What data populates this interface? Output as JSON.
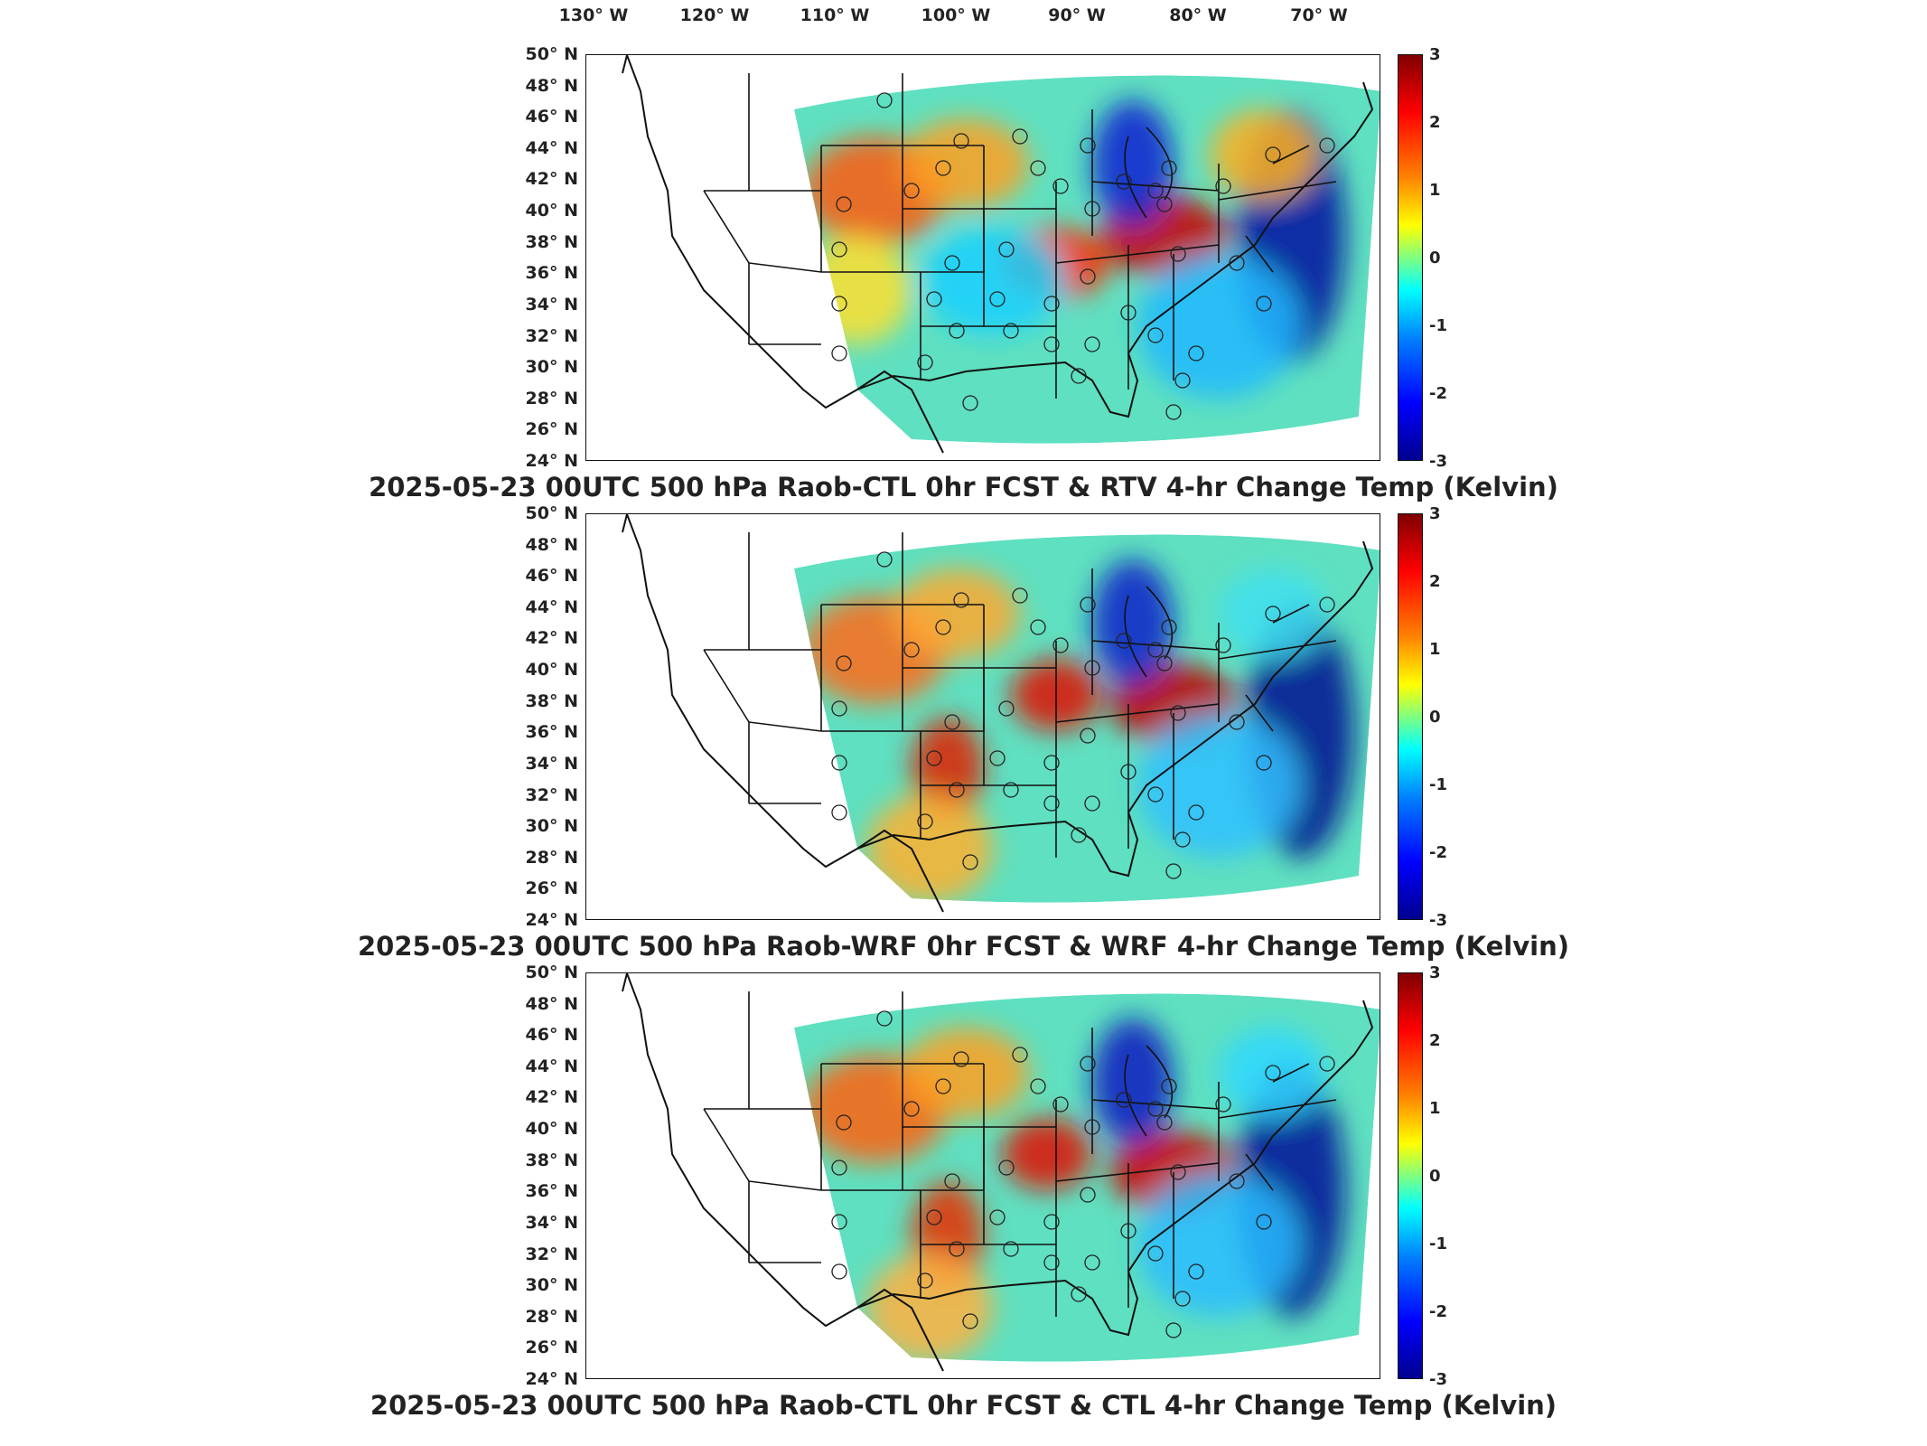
{
  "lon_labels": [
    "130° W",
    "120° W",
    "110° W",
    "100° W",
    "90° W",
    "80° W",
    "70° W"
  ],
  "lat_labels": [
    "50° N",
    "48° N",
    "46° N",
    "44° N",
    "42° N",
    "40° N",
    "38° N",
    "36° N",
    "34° N",
    "32° N",
    "30° N",
    "28° N",
    "26° N",
    "24° N"
  ],
  "colorbar": {
    "ticks": [
      "3",
      "2",
      "1",
      "0",
      "-1",
      "-2",
      "-3"
    ],
    "units": "Kelvin",
    "range": [
      -3,
      3
    ],
    "colormap": "jet"
  },
  "panels": [
    {
      "title": "2025-05-23 00UTC 500 hPa Raob-CTL 0hr FCST & RTV 4-hr Change Temp (Kelvin)"
    },
    {
      "title": "2025-05-23 00UTC 500 hPa Raob-WRF 0hr FCST & WRF 4-hr Change Temp (Kelvin)"
    },
    {
      "title": "2025-05-23 00UTC 500 hPa Raob-CTL 0hr FCST & CTL 4-hr Change Temp (Kelvin)"
    }
  ],
  "colors": {
    "warm": "#e83a10",
    "cool": "#1e5cff",
    "neutral": "#5fe0c0",
    "border": "#111111"
  }
}
